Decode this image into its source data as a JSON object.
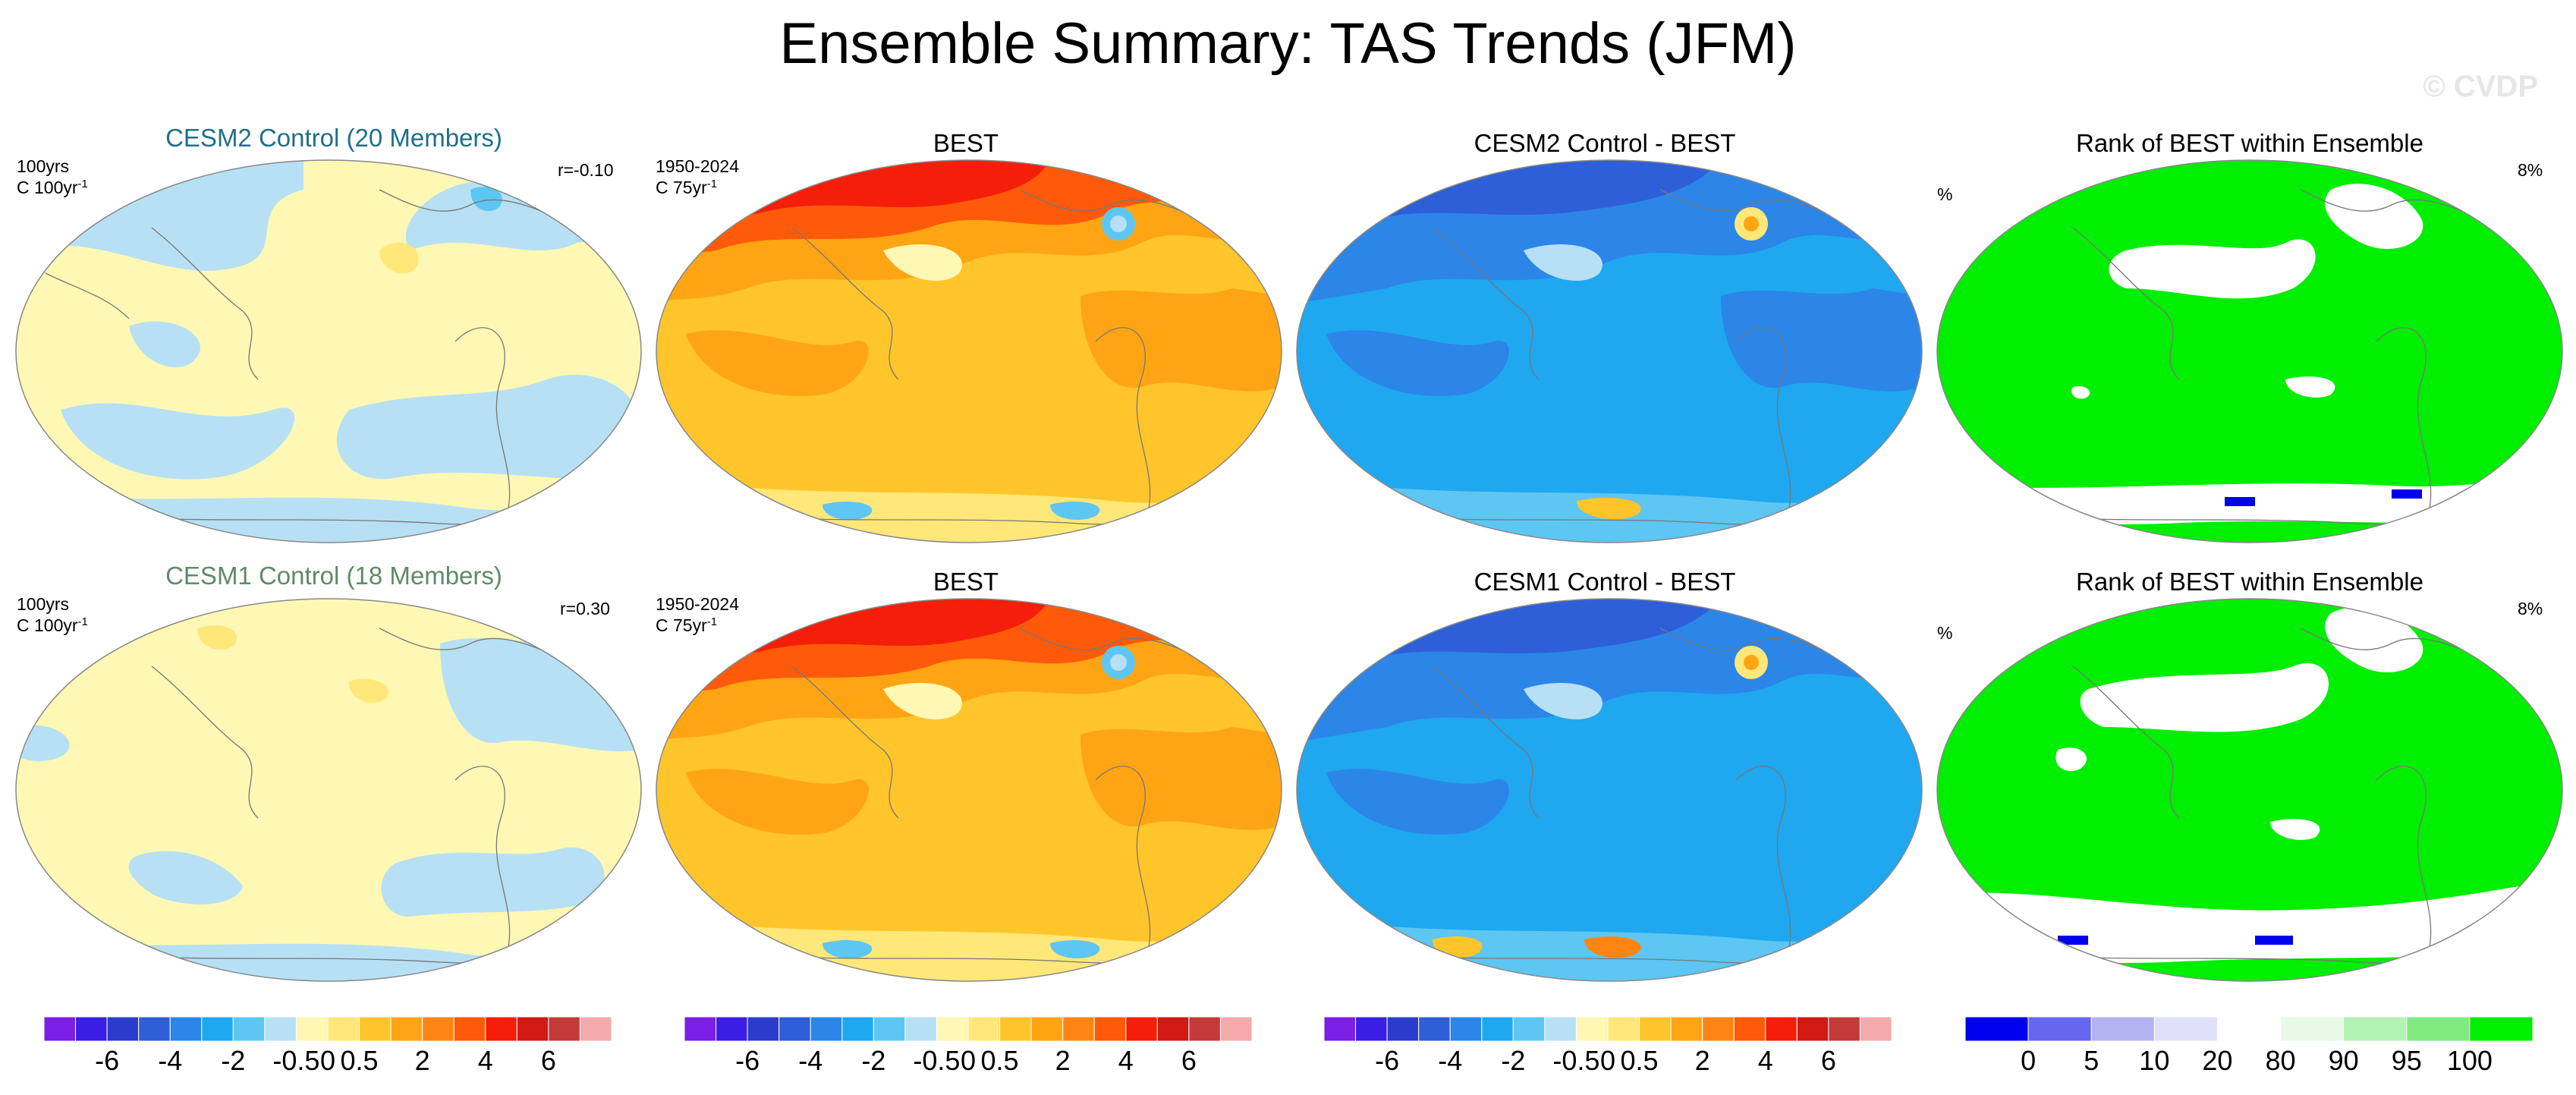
{
  "title": "Ensemble Summary: TAS Trends (JFM)",
  "watermark": "© CVDP",
  "rows": [
    {
      "model_title": "CESM2 Control (20 Members)",
      "model_title_color": "#1f6f8b",
      "model_period": "100yrs",
      "model_units": "C 100yr",
      "model_units_exp": "-1",
      "model_r": "r=-0.10",
      "obs_title": "BEST",
      "obs_period": "1950-2024",
      "obs_units": "C 75yr",
      "obs_units_exp": "-1",
      "diff_title": "CESM2 Control - BEST",
      "rank_title": "Rank of BEST within Ensemble",
      "rank_units": "%",
      "rank_pct": "8%"
    },
    {
      "model_title": "CESM1 Control (18 Members)",
      "model_title_color": "#5f8a66",
      "model_period": "100yrs",
      "model_units": "C 100yr",
      "model_units_exp": "-1",
      "model_r": "r=0.30",
      "obs_title": "BEST",
      "obs_period": "1950-2024",
      "obs_units": "C 75yr",
      "obs_units_exp": "-1",
      "diff_title": "CESM1 Control - BEST",
      "rank_title": "Rank of BEST within Ensemble",
      "rank_units": "%",
      "rank_pct": "8%"
    }
  ],
  "chart_data": [
    {
      "type": "heatmap",
      "title": "CESM2 Control (20 Members)",
      "variable": "TAS trend (JFM)",
      "units": "C 100yr-1",
      "pattern_correlation": -0.1,
      "dominant_range": [
        -0.5,
        0.5
      ]
    },
    {
      "type": "heatmap",
      "title": "BEST",
      "variable": "TAS trend (JFM)",
      "units": "C 75yr-1",
      "period": "1950-2024",
      "dominant_range": [
        0.5,
        6
      ]
    },
    {
      "type": "heatmap",
      "title": "CESM2 Control - BEST",
      "variable": "TAS trend difference (JFM)",
      "dominant_range": [
        -6,
        0.5
      ]
    },
    {
      "type": "heatmap",
      "title": "Rank of BEST within Ensemble",
      "units": "%",
      "area_percent": 8,
      "dominant_range": [
        95,
        100
      ]
    },
    {
      "type": "heatmap",
      "title": "CESM1 Control (18 Members)",
      "variable": "TAS trend (JFM)",
      "units": "C 100yr-1",
      "pattern_correlation": 0.3,
      "dominant_range": [
        -0.5,
        0.5
      ]
    },
    {
      "type": "heatmap",
      "title": "BEST",
      "variable": "TAS trend (JFM)",
      "units": "C 75yr-1",
      "period": "1950-2024",
      "dominant_range": [
        0.5,
        6
      ]
    },
    {
      "type": "heatmap",
      "title": "CESM1 Control - BEST",
      "variable": "TAS trend difference (JFM)",
      "dominant_range": [
        -6,
        0.5
      ]
    },
    {
      "type": "heatmap",
      "title": "Rank of BEST within Ensemble",
      "units": "%",
      "area_percent": 8,
      "dominant_range": [
        95,
        100
      ]
    }
  ],
  "colorbars": {
    "trend": {
      "colors": [
        "#7b1ee6",
        "#3a1ee6",
        "#2b3ccc",
        "#2f5fd8",
        "#2b86e8",
        "#1fa8f0",
        "#5ec6f2",
        "#b7e0f4",
        "#fff8b4",
        "#ffe77a",
        "#ffc52a",
        "#ffa514",
        "#ff8512",
        "#ff5a0a",
        "#f51e0a",
        "#d11a14",
        "#c43a3a",
        "#f4aaaa"
      ],
      "tick_labels": [
        "-6",
        "-4",
        "-2",
        "-0.5",
        "0",
        "0.5",
        "2",
        "4",
        "6"
      ],
      "tick_positions": [
        2,
        4,
        6,
        8,
        9,
        10,
        12,
        14,
        16
      ]
    },
    "rank": {
      "colors": [
        "#0000ee",
        "#6666ee",
        "#b3b3f2",
        "#e0e0fb",
        "#ffffff",
        "#e6fae6",
        "#b2f2b2",
        "#80ea80",
        "#00ee00"
      ],
      "tick_labels": [
        "0",
        "5",
        "10",
        "20",
        "80",
        "90",
        "95",
        "100"
      ],
      "tick_positions": [
        1,
        2,
        3,
        4,
        5,
        6,
        7,
        8
      ]
    }
  }
}
